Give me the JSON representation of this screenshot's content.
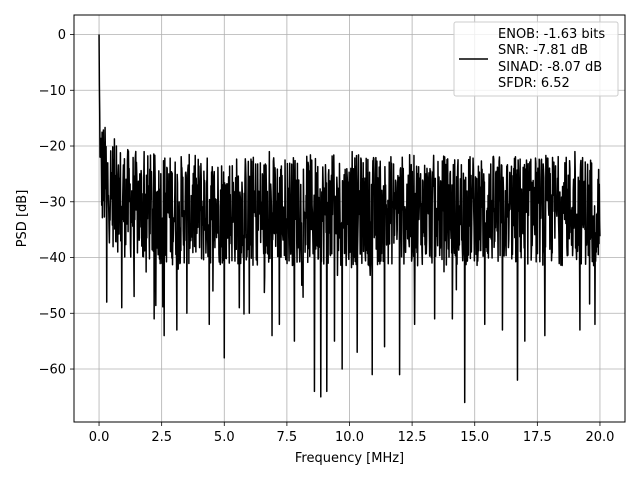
{
  "chart_data": {
    "type": "line",
    "title": "",
    "xlabel": "Frequency [MHz]",
    "ylabel": "PSD [dB]",
    "xlim": [
      -1.0,
      21.0
    ],
    "ylim": [
      -69.5,
      3.5
    ],
    "xticks": [
      0.0,
      2.5,
      5.0,
      7.5,
      10.0,
      12.5,
      15.0,
      17.5,
      20.0
    ],
    "xtick_labels": [
      "0.0",
      "2.5",
      "5.0",
      "7.5",
      "10.0",
      "12.5",
      "15.0",
      "17.5",
      "20.0"
    ],
    "yticks": [
      0,
      -10,
      -20,
      -30,
      -40,
      -50,
      -60
    ],
    "ytick_labels": [
      "0",
      "−10",
      "−20",
      "−30",
      "−40",
      "−50",
      "−60"
    ],
    "grid": true,
    "legend_position": "upper right",
    "line_color": "#000000",
    "series": [
      {
        "name": "ENOB: -1.63 bits\nSNR: -7.81 dB\nSINAD: -8.07 dB\nSFDR: 6.52",
        "legend_lines": [
          "ENOB: -1.63 bits",
          "SNR: -7.81 dB",
          "SINAD: -8.07 dB",
          "SFDR: 6.52"
        ],
        "x_range": [
          0.0,
          20.0
        ],
        "peak": {
          "x": 0.0,
          "y": 0.0
        },
        "noise_floor_mean": -31.5,
        "noise_band": [
          -42,
          -22
        ],
        "spikes_down": [
          {
            "x": 0.3,
            "y": -48
          },
          {
            "x": 0.9,
            "y": -49
          },
          {
            "x": 1.4,
            "y": -47
          },
          {
            "x": 2.2,
            "y": -51
          },
          {
            "x": 2.6,
            "y": -54
          },
          {
            "x": 3.1,
            "y": -53
          },
          {
            "x": 3.5,
            "y": -50
          },
          {
            "x": 4.4,
            "y": -52
          },
          {
            "x": 5.0,
            "y": -58
          },
          {
            "x": 5.6,
            "y": -49
          },
          {
            "x": 6.0,
            "y": -50
          },
          {
            "x": 6.9,
            "y": -54
          },
          {
            "x": 7.2,
            "y": -52
          },
          {
            "x": 7.8,
            "y": -55
          },
          {
            "x": 8.6,
            "y": -64
          },
          {
            "x": 8.85,
            "y": -65
          },
          {
            "x": 9.1,
            "y": -64
          },
          {
            "x": 9.4,
            "y": -55
          },
          {
            "x": 9.7,
            "y": -60
          },
          {
            "x": 10.3,
            "y": -57
          },
          {
            "x": 10.9,
            "y": -61
          },
          {
            "x": 11.4,
            "y": -56
          },
          {
            "x": 12.0,
            "y": -61
          },
          {
            "x": 12.6,
            "y": -52
          },
          {
            "x": 13.4,
            "y": -51
          },
          {
            "x": 14.1,
            "y": -51
          },
          {
            "x": 14.6,
            "y": -66
          },
          {
            "x": 15.4,
            "y": -52
          },
          {
            "x": 16.1,
            "y": -53
          },
          {
            "x": 16.7,
            "y": -62
          },
          {
            "x": 17.0,
            "y": -55
          },
          {
            "x": 17.8,
            "y": -54
          },
          {
            "x": 18.6,
            "y": -54
          },
          {
            "x": 19.2,
            "y": -53
          },
          {
            "x": 19.8,
            "y": -52
          }
        ],
        "spikes_up": [
          {
            "x": 0.7,
            "y": -20
          },
          {
            "x": 1.8,
            "y": -21
          },
          {
            "x": 6.8,
            "y": -21
          },
          {
            "x": 10.1,
            "y": -21
          },
          {
            "x": 18.6,
            "y": -23
          },
          {
            "x": 19.0,
            "y": -21
          }
        ]
      }
    ]
  }
}
